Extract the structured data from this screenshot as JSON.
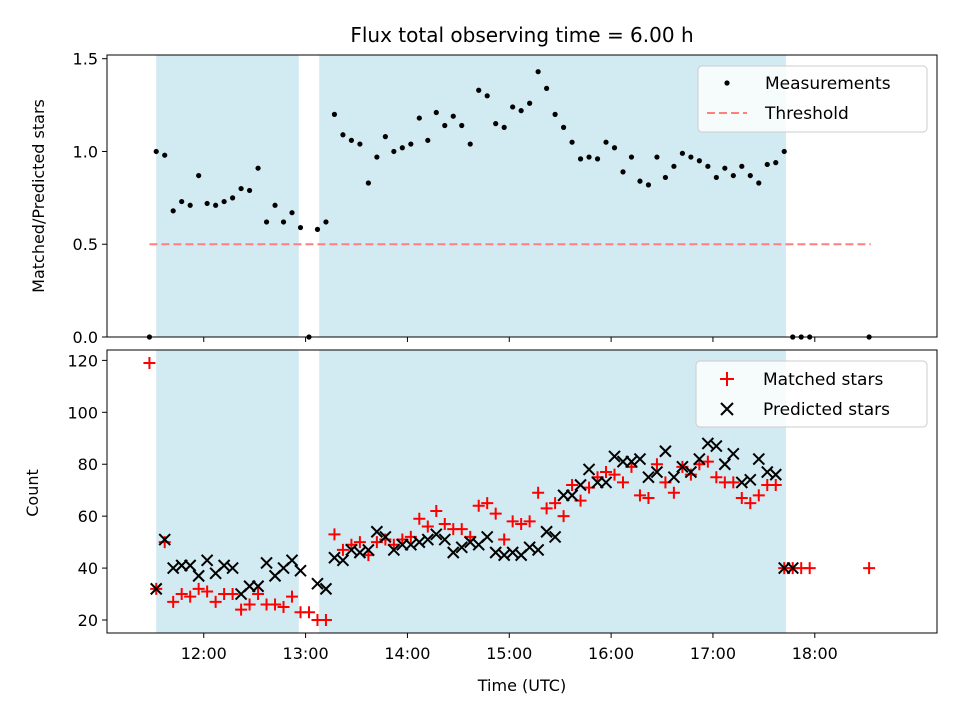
{
  "figure": {
    "title": "Flux total observing time = 6.00 h"
  },
  "colors": {
    "shade": "#add8e6",
    "threshold": "#ff7f7f",
    "matched": "#ff0000",
    "predicted": "#000000",
    "measure": "#000000"
  },
  "chart_data": [
    {
      "type": "scatter",
      "ylabel": "Matched/Predicted stars",
      "ylim": [
        0,
        1.52
      ],
      "yticks": [
        0.0,
        0.5,
        1.0,
        1.5
      ],
      "ytick_labels": [
        "0.0",
        "0.5",
        "1.0",
        "1.5"
      ],
      "xlim_hours": [
        11.05,
        19.2
      ],
      "shaded_intervals": [
        [
          "11:32",
          "12:56"
        ],
        [
          "13:08",
          "17:43"
        ]
      ],
      "threshold": {
        "value": 0.5,
        "x_start": "11:28",
        "x_end": "18:33"
      },
      "legend": {
        "position": "upper-right",
        "entries": [
          "Measurements",
          "Threshold"
        ]
      },
      "series": [
        {
          "name": "Measurements",
          "x": [
            "11:28",
            "11:32",
            "11:37",
            "11:42",
            "11:47",
            "11:52",
            "11:57",
            "12:02",
            "12:07",
            "12:12",
            "12:17",
            "12:22",
            "12:27",
            "12:32",
            "12:37",
            "12:42",
            "12:47",
            "12:52",
            "12:57",
            "13:02",
            "13:07",
            "13:12",
            "13:17",
            "13:22",
            "13:27",
            "13:32",
            "13:37",
            "13:42",
            "13:47",
            "13:52",
            "13:57",
            "14:02",
            "14:07",
            "14:12",
            "14:17",
            "14:22",
            "14:27",
            "14:32",
            "14:37",
            "14:42",
            "14:47",
            "14:52",
            "14:57",
            "15:02",
            "15:07",
            "15:12",
            "15:17",
            "15:22",
            "15:27",
            "15:32",
            "15:37",
            "15:42",
            "15:47",
            "15:52",
            "15:57",
            "16:02",
            "16:07",
            "16:12",
            "16:17",
            "16:22",
            "16:27",
            "16:32",
            "16:37",
            "16:42",
            "16:47",
            "16:52",
            "16:57",
            "17:02",
            "17:07",
            "17:12",
            "17:17",
            "17:22",
            "17:27",
            "17:32",
            "17:37",
            "17:42",
            "17:47",
            "17:52",
            "17:57",
            "18:32"
          ],
          "values": [
            0.0,
            1.0,
            0.98,
            0.68,
            0.73,
            0.71,
            0.87,
            0.72,
            0.71,
            0.73,
            0.75,
            0.8,
            0.79,
            0.91,
            0.62,
            0.71,
            0.62,
            0.67,
            0.59,
            0.0,
            0.58,
            0.62,
            1.2,
            1.09,
            1.06,
            1.04,
            0.83,
            0.97,
            1.08,
            1.0,
            1.02,
            1.04,
            1.18,
            1.06,
            1.21,
            1.14,
            1.19,
            1.14,
            1.04,
            1.33,
            1.3,
            1.15,
            1.13,
            1.24,
            1.22,
            1.26,
            1.43,
            1.34,
            1.2,
            1.13,
            1.05,
            0.96,
            0.97,
            0.96,
            1.05,
            1.02,
            0.89,
            0.97,
            0.84,
            0.82,
            0.97,
            0.86,
            0.92,
            0.99,
            0.97,
            0.95,
            0.92,
            0.86,
            0.91,
            0.87,
            0.92,
            0.87,
            0.83,
            0.93,
            0.94,
            1.0,
            0.0,
            0.0,
            0.0,
            0.0
          ]
        }
      ]
    },
    {
      "type": "scatter",
      "xlabel": "Time (UTC)",
      "ylabel": "Count",
      "ylim": [
        15,
        124
      ],
      "yticks": [
        20,
        40,
        60,
        80,
        100,
        120
      ],
      "xticks": [
        "12:00",
        "13:00",
        "14:00",
        "15:00",
        "16:00",
        "17:00",
        "18:00"
      ],
      "xlim_hours": [
        11.05,
        19.2
      ],
      "legend": {
        "position": "upper-right",
        "entries": [
          "Matched stars",
          "Predicted stars"
        ]
      },
      "series": [
        {
          "name": "Matched stars",
          "x": [
            "11:28",
            "11:32",
            "11:37",
            "11:42",
            "11:47",
            "11:52",
            "11:57",
            "12:02",
            "12:07",
            "12:12",
            "12:17",
            "12:22",
            "12:27",
            "12:32",
            "12:37",
            "12:42",
            "12:47",
            "12:52",
            "12:57",
            "13:02",
            "13:07",
            "13:12",
            "13:17",
            "13:22",
            "13:27",
            "13:32",
            "13:37",
            "13:42",
            "13:47",
            "13:52",
            "13:57",
            "14:02",
            "14:07",
            "14:12",
            "14:17",
            "14:22",
            "14:27",
            "14:32",
            "14:37",
            "14:42",
            "14:47",
            "14:52",
            "14:57",
            "15:02",
            "15:07",
            "15:12",
            "15:17",
            "15:22",
            "15:27",
            "15:32",
            "15:37",
            "15:42",
            "15:47",
            "15:52",
            "15:57",
            "16:02",
            "16:07",
            "16:12",
            "16:17",
            "16:22",
            "16:27",
            "16:32",
            "16:37",
            "16:42",
            "16:47",
            "16:52",
            "16:57",
            "17:02",
            "17:07",
            "17:12",
            "17:17",
            "17:22",
            "17:27",
            "17:32",
            "17:37",
            "17:42",
            "17:47",
            "17:52",
            "17:57",
            "18:32"
          ],
          "values": [
            119,
            32,
            50,
            27,
            30,
            29,
            32,
            31,
            27,
            30,
            30,
            24,
            26,
            30,
            26,
            26,
            25,
            29,
            23,
            23,
            20,
            20,
            53,
            47,
            49,
            50,
            45,
            50,
            51,
            49,
            51,
            52,
            59,
            56,
            62,
            57,
            55,
            55,
            52,
            64,
            65,
            61,
            51,
            58,
            57,
            58,
            69,
            63,
            65,
            60,
            72,
            66,
            71,
            75,
            77,
            76,
            73,
            79,
            68,
            67,
            80,
            73,
            69,
            79,
            76,
            80,
            81,
            75,
            73,
            73,
            67,
            65,
            68,
            72,
            72,
            40,
            40,
            40,
            40,
            40
          ]
        },
        {
          "name": "Predicted stars",
          "x": [
            "11:32",
            "11:37",
            "11:42",
            "11:47",
            "11:52",
            "11:57",
            "12:02",
            "12:07",
            "12:12",
            "12:17",
            "12:22",
            "12:27",
            "12:32",
            "12:37",
            "12:42",
            "12:47",
            "12:52",
            "12:57",
            "13:07",
            "13:12",
            "13:17",
            "13:22",
            "13:27",
            "13:32",
            "13:37",
            "13:42",
            "13:47",
            "13:52",
            "13:57",
            "14:02",
            "14:07",
            "14:12",
            "14:17",
            "14:22",
            "14:27",
            "14:32",
            "14:37",
            "14:42",
            "14:47",
            "14:52",
            "14:57",
            "15:02",
            "15:07",
            "15:12",
            "15:17",
            "15:22",
            "15:27",
            "15:32",
            "15:37",
            "15:42",
            "15:47",
            "15:52",
            "15:57",
            "16:02",
            "16:07",
            "16:12",
            "16:17",
            "16:22",
            "16:27",
            "16:32",
            "16:37",
            "16:42",
            "16:47",
            "16:52",
            "16:57",
            "17:02",
            "17:07",
            "17:12",
            "17:17",
            "17:22",
            "17:27",
            "17:32",
            "17:37",
            "17:42",
            "17:47"
          ],
          "values": [
            32,
            51,
            40,
            41,
            41,
            37,
            43,
            38,
            41,
            40,
            30,
            33,
            33,
            42,
            37,
            40,
            43,
            39,
            34,
            32,
            44,
            43,
            47,
            46,
            47,
            54,
            52,
            47,
            49,
            49,
            50,
            51,
            53,
            51,
            46,
            48,
            50,
            49,
            52,
            46,
            45,
            46,
            45,
            48,
            47,
            54,
            52,
            68,
            68,
            72,
            78,
            73,
            73,
            83,
            81,
            81,
            82,
            75,
            77,
            85,
            75,
            79,
            77,
            82,
            88,
            87,
            80,
            84,
            73,
            74,
            82,
            77,
            76,
            40,
            40
          ]
        }
      ]
    }
  ]
}
